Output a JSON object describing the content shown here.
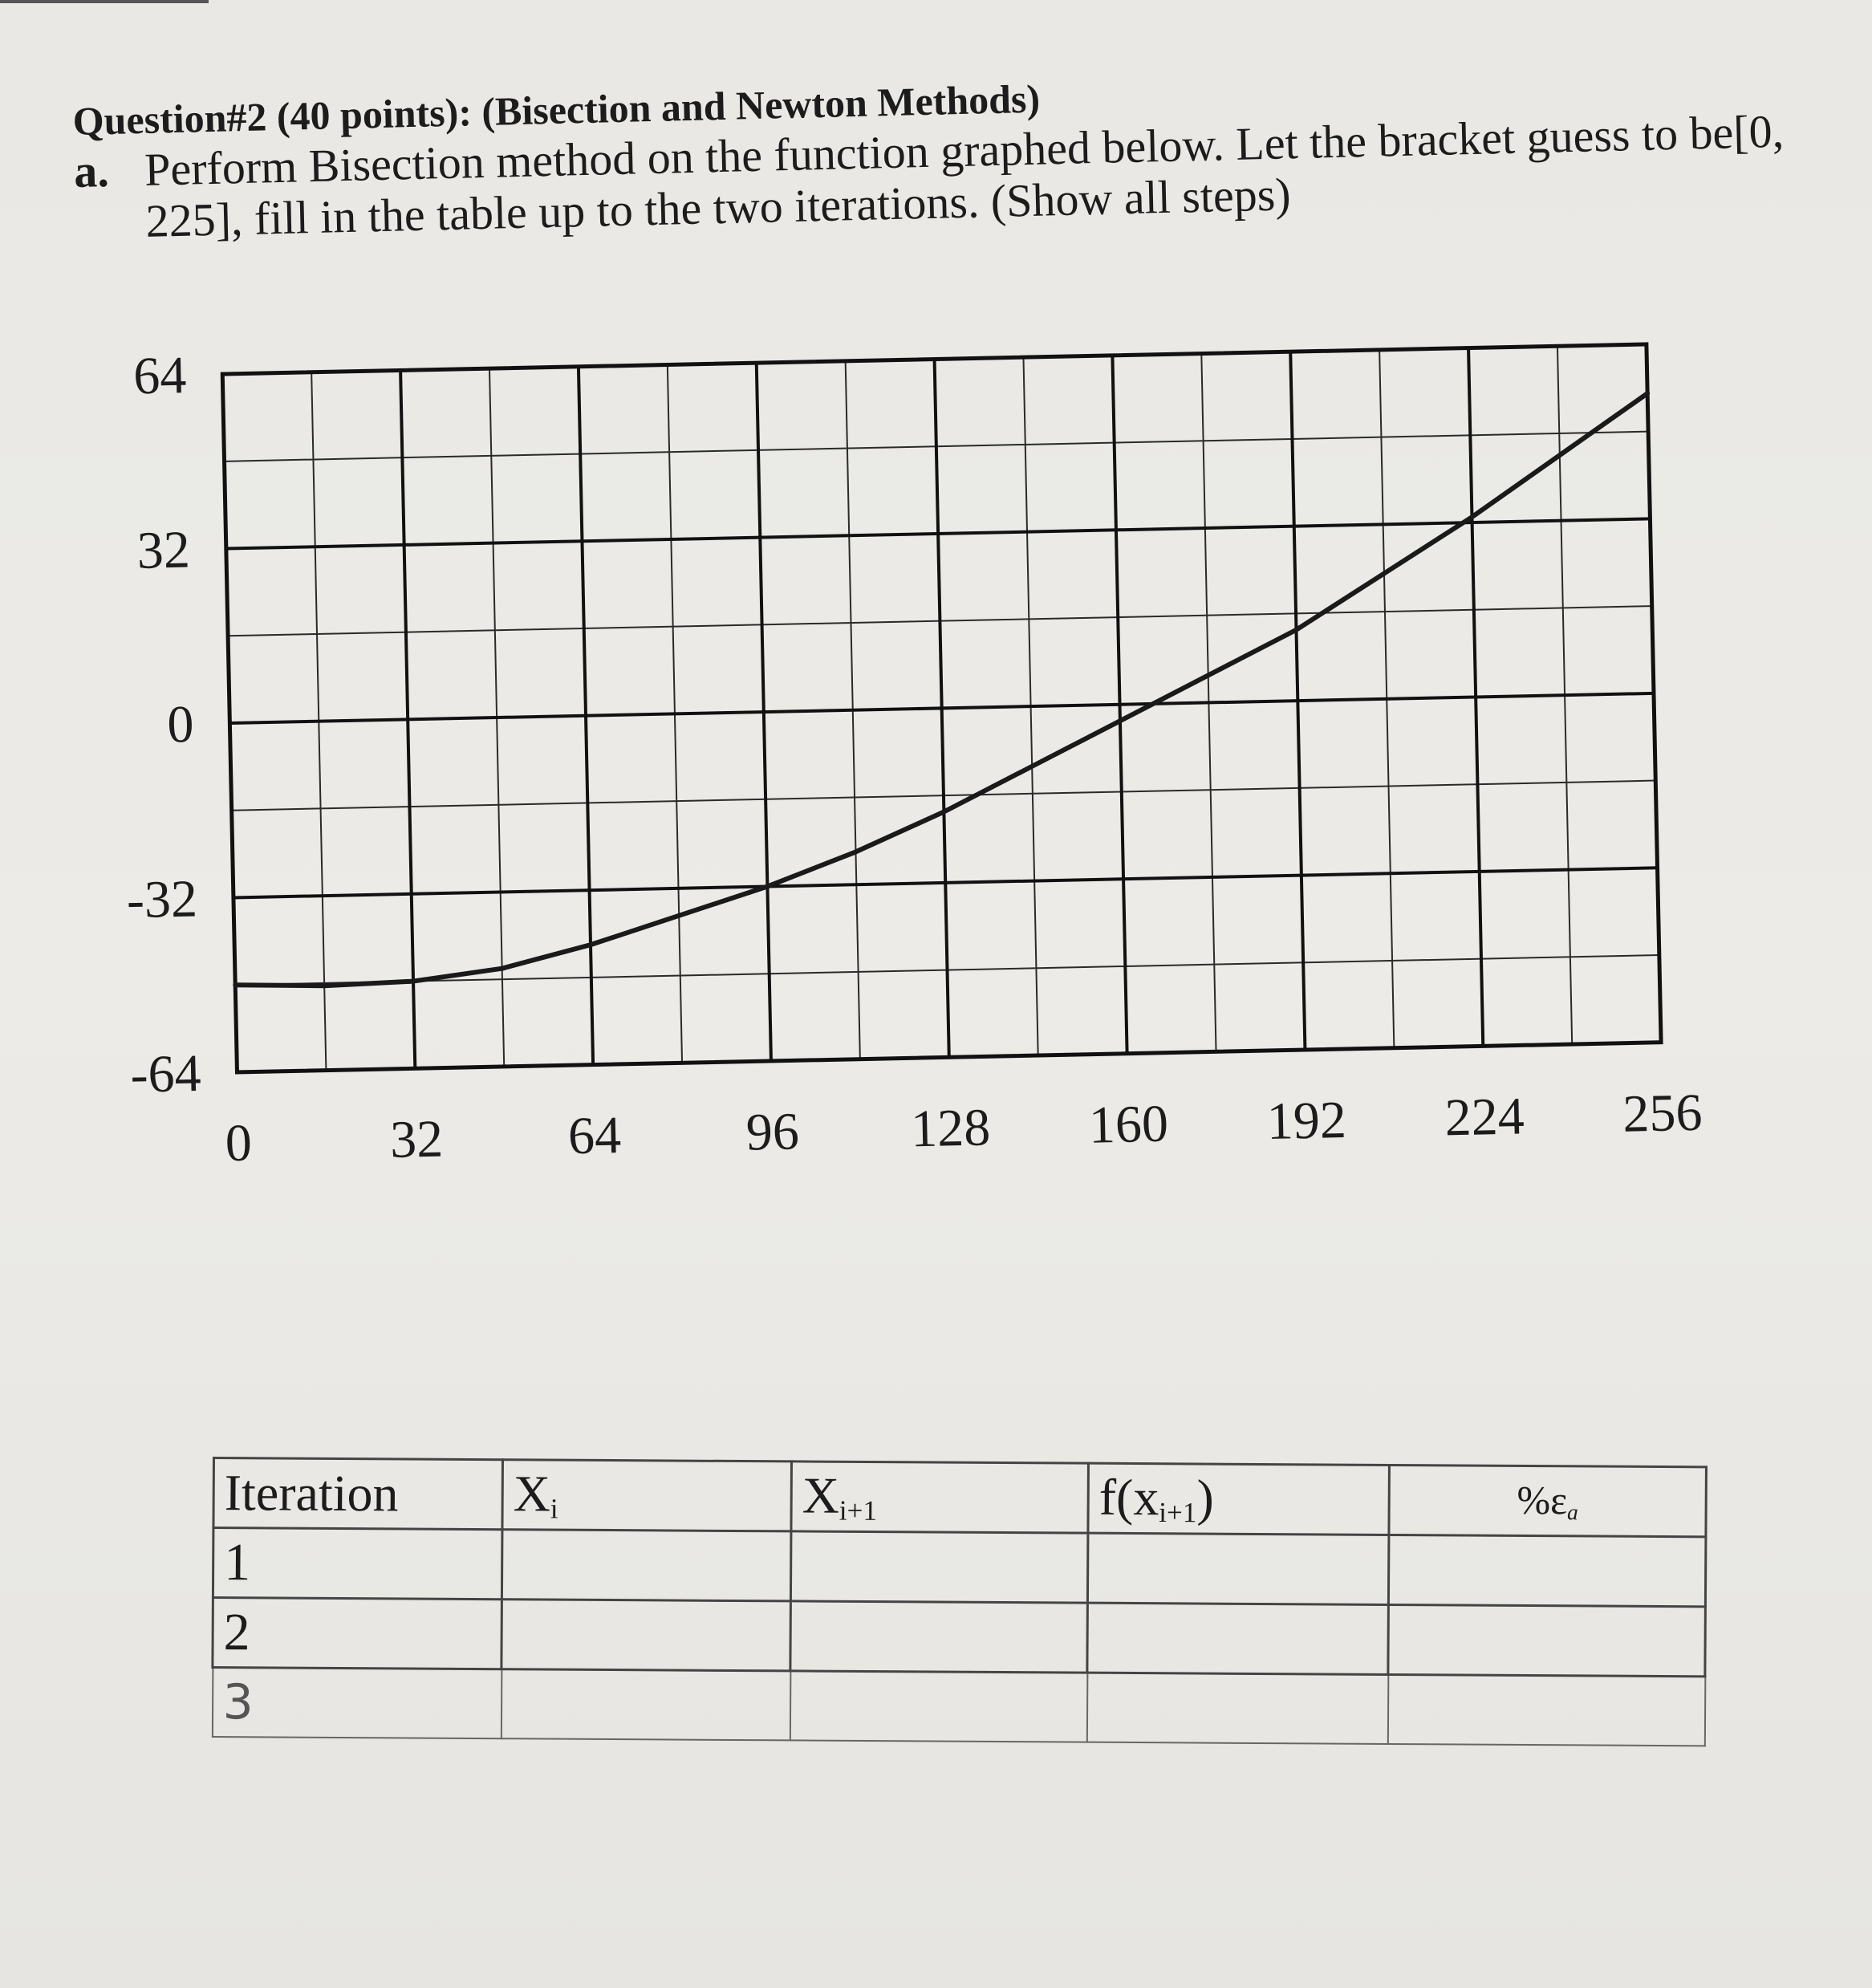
{
  "question": {
    "title": "Question#2 (40 points): (Bisection and Newton Methods)",
    "part_letter": "a.",
    "part_text": "Perform Bisection method on the function graphed below. Let the bracket guess to be[0, 225], fill in the table up to the two iterations. (Show all steps)"
  },
  "chart_data": {
    "type": "line",
    "title": "",
    "xlabel": "",
    "ylabel": "",
    "xlim": [
      0,
      256
    ],
    "ylim": [
      -64,
      64
    ],
    "x_ticks": [
      "0",
      "32",
      "64",
      "96",
      "128",
      "160",
      "192",
      "224",
      "256"
    ],
    "y_ticks": [
      "64",
      "32",
      "0",
      "-32",
      "-64"
    ],
    "grid": true,
    "series": [
      {
        "x": [
          0,
          16,
          32,
          48,
          64,
          80,
          96,
          112,
          128,
          144,
          160,
          176,
          192,
          208,
          224,
          240,
          256
        ],
        "y": [
          -48,
          -48.5,
          -48,
          -46,
          -42,
          -37,
          -32,
          -26,
          -19,
          -11,
          -3,
          5,
          13,
          23,
          33,
          44,
          55
        ]
      }
    ]
  },
  "table": {
    "headers": {
      "iteration": "Iteration",
      "xi_base": "X",
      "xi_sub": "i",
      "xi1_base": "X",
      "xi1_sub": "i+1",
      "fx_pre": "f(x",
      "fx_sub": "i+1",
      "fx_post": ")",
      "ea": "%ε",
      "ea_sub": "a"
    },
    "rows": [
      "1",
      "2",
      "3"
    ]
  }
}
